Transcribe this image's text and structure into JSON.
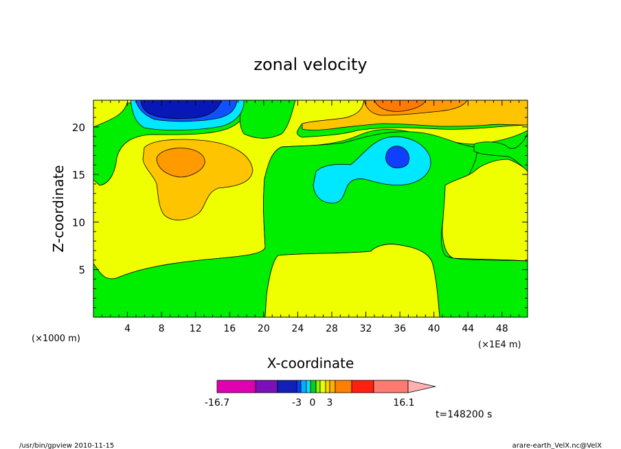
{
  "chart_data": {
    "type": "heatmap",
    "title": "zonal velocity",
    "xlabel": "X-coordinate",
    "ylabel": "Z-coordinate",
    "x_unit_left": "(×1000 m)",
    "x_unit_right": "(×1E4 m)",
    "xlim": [
      0,
      51
    ],
    "ylim": [
      0,
      22.8
    ],
    "xticks": [
      4,
      8,
      12,
      16,
      20,
      24,
      28,
      32,
      36,
      40,
      44,
      48
    ],
    "xtick_labels": [
      "4",
      "8",
      "12",
      "16",
      "20",
      "24",
      "28",
      "32",
      "36",
      "40",
      "44",
      "48"
    ],
    "yticks": [
      5,
      10,
      15,
      20
    ],
    "ytick_labels": [
      "5",
      "10",
      "15",
      "20"
    ],
    "time_label": "t=148200 s",
    "colorbar": {
      "min": -16.7,
      "max": 16.1,
      "labels": [
        "-16.7",
        "-3",
        "0",
        "3",
        "16.1"
      ],
      "colors": [
        "#e000b0",
        "#7a10b8",
        "#1020b8",
        "#0040ff",
        "#00b0ff",
        "#00e8ff",
        "#00d020",
        "#90f000",
        "#e8ff00",
        "#ffd400",
        "#ffb000",
        "#ff8000",
        "#ff2010",
        "#ff7a70",
        "#ffb0b0"
      ]
    },
    "regions": [
      {
        "name": "background",
        "color": "#00ee00"
      },
      {
        "name": "positive-weak",
        "color": "#f0ff00"
      },
      {
        "name": "positive-moderate",
        "color": "#ffc400"
      },
      {
        "name": "positive-strong",
        "color": "#ff9a00"
      },
      {
        "name": "positive-strongest",
        "color": "#ff7a00"
      },
      {
        "name": "negative-weak",
        "color": "#00e8ff"
      },
      {
        "name": "negative-moderate",
        "color": "#1050ff"
      },
      {
        "name": "negative-strong",
        "color": "#0818b8"
      }
    ]
  },
  "footer": {
    "left": "/usr/bin/gpview  2010-11-15",
    "right": "arare-earth_VelX.nc@VelX"
  }
}
